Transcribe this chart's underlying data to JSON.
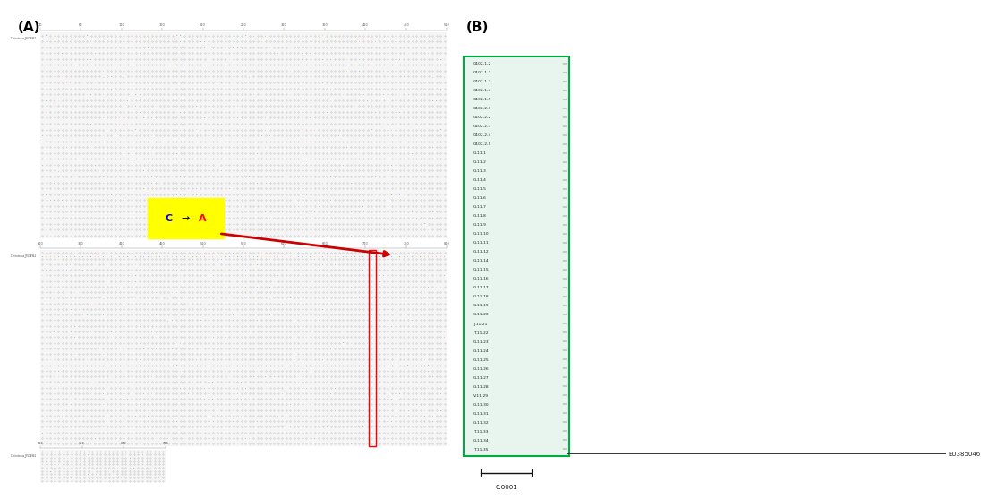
{
  "panel_A_label": "(A)",
  "panel_B_label": "(B)",
  "annotation_bg": "#FFFF00",
  "annotation_text_color_C": "#0000FF",
  "annotation_text_color_arrow": "#000000",
  "annotation_text_color_A": "#FF0000",
  "red_box_color": "#FF0000",
  "arrow_color": "#CC0000",
  "green_box_color": "#00AA44",
  "outgroup_label": "EU385046",
  "scale_label": "0.0001",
  "tree_taxa": [
    "G102-1-2",
    "G102-1-1",
    "G102-1-3",
    "G102-1-4",
    "G102-1-5",
    "G102-2-1",
    "G102-2-2",
    "G102-2-3",
    "G102-2-4",
    "G102-2-5",
    "G-11-1",
    "G-11-2",
    "G-11-3",
    "G-11-4",
    "G-11-5",
    "G-11-6",
    "G-11-7",
    "G-11-8",
    "G-11-9",
    "G-11-10",
    "G-11-11",
    "G-11-12",
    "G-11-14",
    "G-11-15",
    "G-11-16",
    "G-11-17",
    "G-11-18",
    "G-11-19",
    "G-11-20",
    "J-11-21",
    "T-11-22",
    "G-11-23",
    "G-11-24",
    "G-11-25",
    "G-11-26",
    "G-11-27",
    "G-11-28",
    "V-11-29",
    "G-11-30",
    "G-11-31",
    "G-11-32",
    "T-11-33",
    "G-11-34",
    "T-11-35"
  ],
  "seq_panel_bg": "#F5F5F5",
  "seq_dot_color": "#AAAAAA",
  "fig_width": 10.85,
  "fig_height": 5.45
}
